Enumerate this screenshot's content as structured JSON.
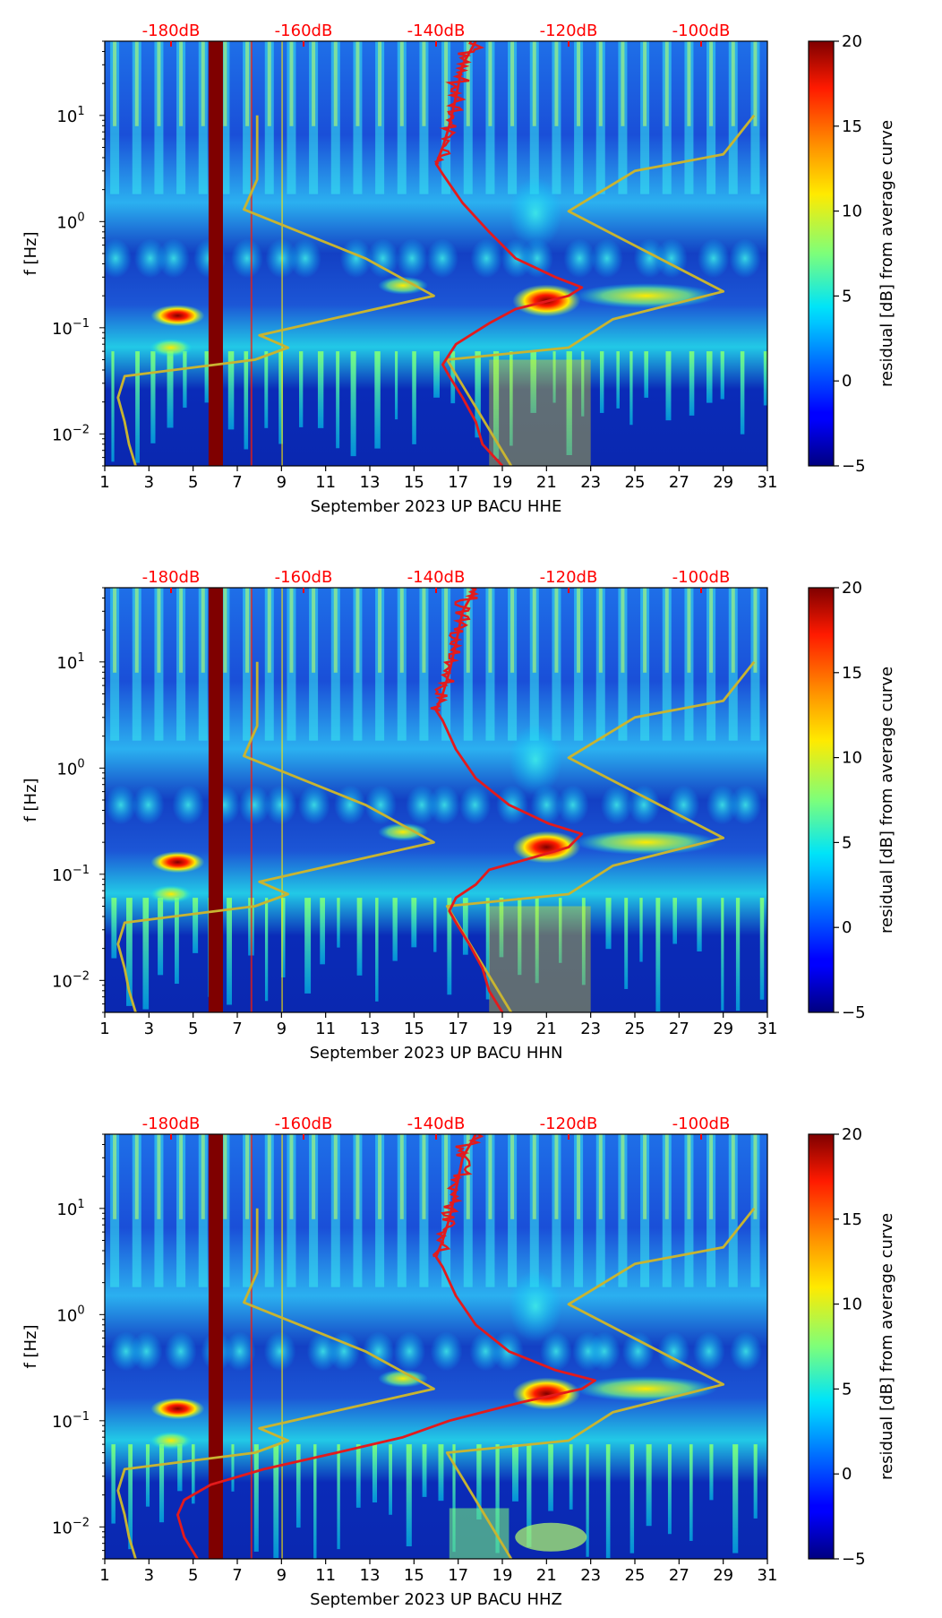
{
  "colors": {
    "noise_curve": "#e31a1c",
    "model_curve": "#c8b431",
    "db_labels": "#ff0000",
    "axis": "#000000"
  },
  "shared": {
    "ylabel": "f [Hz]",
    "colorbar_label": "residual [dB] from average curve",
    "x_ticks": [
      1,
      3,
      5,
      7,
      9,
      11,
      13,
      15,
      17,
      19,
      21,
      23,
      25,
      27,
      29,
      31
    ],
    "x_range": [
      1,
      31
    ],
    "y_range": [
      0.005,
      50
    ],
    "y_ticks": [
      {
        "v": 0.01,
        "b": "10",
        "e": "−2"
      },
      {
        "v": 0.1,
        "b": "10",
        "e": "−1"
      },
      {
        "v": 1,
        "b": "10",
        "e": "0"
      },
      {
        "v": 10,
        "b": "10",
        "e": "1"
      }
    ],
    "colorbar_ticks": [
      20,
      15,
      10,
      5,
      0,
      -5
    ],
    "colorbar_range": [
      -5,
      20
    ],
    "db_labels": [
      "-180dB",
      "-160dB",
      "-140dB",
      "-120dB",
      "-100dB"
    ],
    "db_range": [
      -190,
      -90
    ],
    "db_positions": [
      -180,
      -160,
      -140,
      -120,
      -100
    ],
    "model_curve": [
      [
        2.4,
        0.005
      ],
      [
        2.1,
        0.008
      ],
      [
        1.9,
        0.013
      ],
      [
        1.6,
        0.022
      ],
      [
        1.9,
        0.035
      ],
      [
        7.8,
        0.05
      ],
      [
        9.3,
        0.065
      ],
      [
        8.0,
        0.085
      ],
      [
        15.9,
        0.2
      ],
      [
        12.8,
        0.45
      ],
      [
        7.3,
        1.3
      ],
      [
        7.9,
        2.5
      ],
      [
        7.9,
        10
      ]
    ],
    "model_curve_high": [
      [
        19.4,
        0.005
      ],
      [
        16.5,
        0.05
      ],
      [
        22.0,
        0.065
      ],
      [
        24.0,
        0.12
      ],
      [
        29.0,
        0.22
      ],
      [
        22.0,
        1.25
      ],
      [
        25.0,
        3.0
      ],
      [
        29.0,
        4.3
      ],
      [
        30.4,
        10
      ]
    ]
  },
  "chart_data": [
    {
      "type": "heatmap",
      "title": "",
      "xlabel": "September 2023 UP BACU  HHE",
      "ylabel": "f [Hz]",
      "colorbar_label": "residual [dB] from average curve",
      "noise_curve_db": [
        [
          -130,
          0.005
        ],
        [
          -133,
          0.008
        ],
        [
          -134,
          0.013
        ],
        [
          -136,
          0.022
        ],
        [
          -138,
          0.035
        ],
        [
          -139,
          0.045
        ],
        [
          -137,
          0.07
        ],
        [
          -132,
          0.11
        ],
        [
          -128,
          0.15
        ],
        [
          -120,
          0.2
        ],
        [
          -118,
          0.24
        ],
        [
          -122,
          0.3
        ],
        [
          -128,
          0.45
        ],
        [
          -132,
          0.8
        ],
        [
          -136,
          1.5
        ],
        [
          -139,
          2.8
        ],
        [
          -140,
          3.5
        ],
        [
          -139,
          5
        ],
        [
          -138,
          8
        ],
        [
          -137,
          15
        ],
        [
          -136,
          30
        ],
        [
          -134,
          50
        ]
      ]
    },
    {
      "type": "heatmap",
      "title": "",
      "xlabel": "September 2023 UP BACU  HHN",
      "ylabel": "f [Hz]",
      "colorbar_label": "residual [dB] from average curve",
      "noise_curve_db": [
        [
          -130,
          0.005
        ],
        [
          -132,
          0.008
        ],
        [
          -133,
          0.013
        ],
        [
          -135,
          0.022
        ],
        [
          -137,
          0.035
        ],
        [
          -138,
          0.045
        ],
        [
          -137,
          0.06
        ],
        [
          -134,
          0.08
        ],
        [
          -132,
          0.11
        ],
        [
          -126,
          0.14
        ],
        [
          -120,
          0.18
        ],
        [
          -118,
          0.24
        ],
        [
          -123,
          0.3
        ],
        [
          -129,
          0.45
        ],
        [
          -134,
          0.8
        ],
        [
          -137,
          1.5
        ],
        [
          -139,
          2.8
        ],
        [
          -140,
          3.5
        ],
        [
          -139,
          5
        ],
        [
          -138,
          8
        ],
        [
          -137,
          15
        ],
        [
          -136,
          30
        ],
        [
          -134,
          50
        ]
      ]
    },
    {
      "type": "heatmap",
      "title": "",
      "xlabel": "September 2023 UP BACU  HHZ",
      "ylabel": "f [Hz]",
      "colorbar_label": "residual [dB] from average curve",
      "noise_curve_db": [
        [
          -176,
          0.005
        ],
        [
          -178,
          0.008
        ],
        [
          -179,
          0.013
        ],
        [
          -178,
          0.018
        ],
        [
          -174,
          0.025
        ],
        [
          -166,
          0.035
        ],
        [
          -155,
          0.05
        ],
        [
          -145,
          0.07
        ],
        [
          -138,
          0.1
        ],
        [
          -127,
          0.15
        ],
        [
          -118,
          0.2
        ],
        [
          -116,
          0.24
        ],
        [
          -122,
          0.3
        ],
        [
          -129,
          0.45
        ],
        [
          -134,
          0.8
        ],
        [
          -137,
          1.5
        ],
        [
          -139,
          2.8
        ],
        [
          -140,
          3.5
        ],
        [
          -139,
          5
        ],
        [
          -138,
          8
        ],
        [
          -137,
          15
        ],
        [
          -136,
          30
        ],
        [
          -134,
          50
        ]
      ]
    }
  ]
}
